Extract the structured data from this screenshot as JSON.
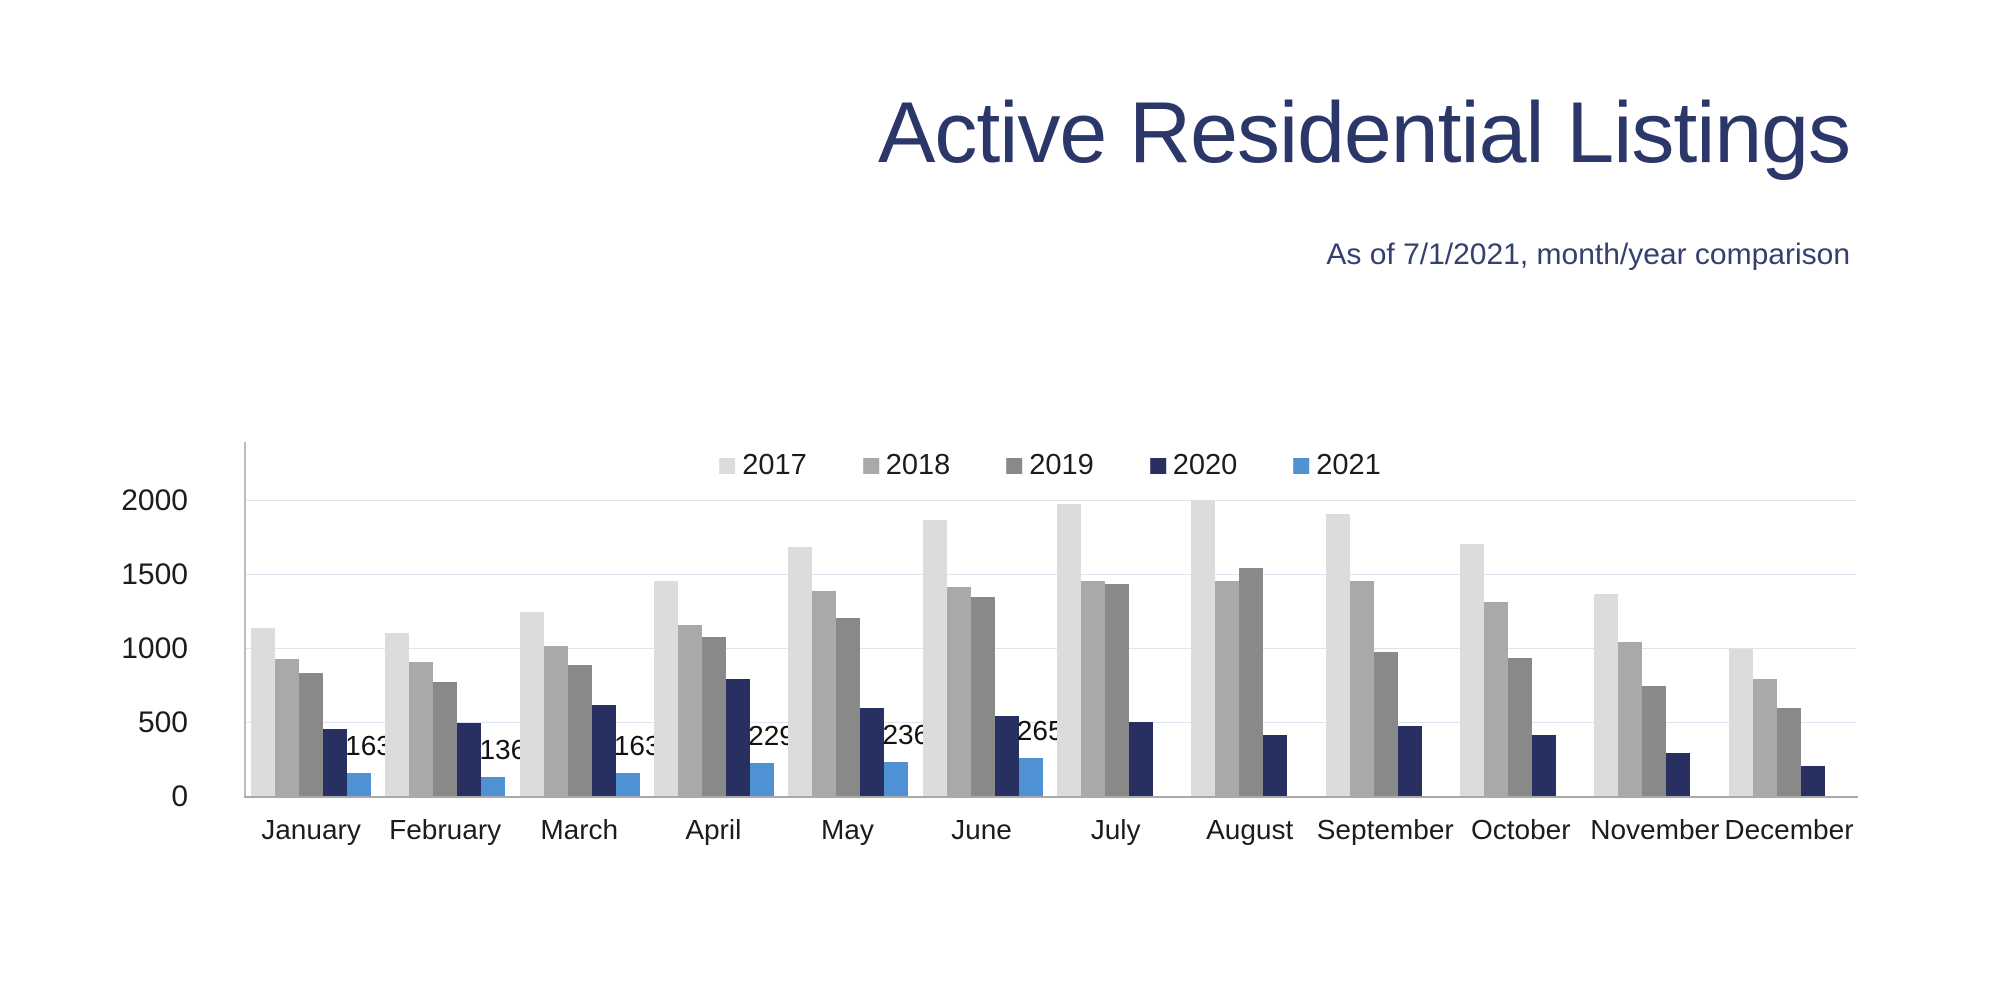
{
  "title": "Active Residential Listings",
  "subtitle": "As of 7/1/2021, month/year comparison",
  "colors": {
    "title_text": "#2b3769",
    "subtitle_text": "#35406e",
    "tick_text": "#1c1c1c",
    "month_text": "#1c1c1c",
    "data_label_text": "#111111",
    "legend_text": "#1c1c1c",
    "gridline": "#dde3f0",
    "y_axis_line": "#b9bcc0",
    "x_axis_line": "#a8a8a8",
    "series_2017": "#dcdcdc",
    "series_2018": "#a9a9a9",
    "series_2019": "#898989",
    "series_2020": "#273060",
    "series_2021": "#4f92d3"
  },
  "chart_data": {
    "type": "bar",
    "title": "Active Residential Listings",
    "subtitle": "As of 7/1/2021, month/year comparison",
    "categories": [
      "January",
      "February",
      "March",
      "April",
      "May",
      "June",
      "July",
      "August",
      "September",
      "October",
      "November",
      "December"
    ],
    "series": [
      {
        "name": "2017",
        "color": "#dcdcdc",
        "values": [
          1140,
          1110,
          1250,
          1460,
          1690,
          1870,
          1980,
          2010,
          1910,
          1710,
          1370,
          1000
        ]
      },
      {
        "name": "2018",
        "color": "#a9a9a9",
        "values": [
          930,
          910,
          1020,
          1160,
          1390,
          1420,
          1460,
          1460,
          1460,
          1320,
          1050,
          800
        ]
      },
      {
        "name": "2019",
        "color": "#898989",
        "values": [
          840,
          780,
          890,
          1080,
          1210,
          1350,
          1440,
          1550,
          980,
          940,
          750,
          600
        ]
      },
      {
        "name": "2020",
        "color": "#273060",
        "values": [
          460,
          500,
          620,
          800,
          600,
          550,
          510,
          420,
          480,
          420,
          300,
          210
        ]
      },
      {
        "name": "2021",
        "color": "#4f92d3",
        "values": [
          163,
          136,
          163,
          229,
          236,
          265,
          null,
          null,
          null,
          null,
          null,
          null
        ],
        "show_data_labels": true
      }
    ],
    "data_labels_shown": [
      "163",
      "136",
      "163",
      "229",
      "236",
      "265"
    ],
    "ylim": [
      0,
      2400
    ],
    "yticks": [
      0,
      500,
      1000,
      1500,
      2000
    ],
    "ytick_labels": [
      "0",
      "500",
      "1000",
      "1500",
      "2000"
    ],
    "grid": true,
    "legend_position": "top-center",
    "legend_entries": [
      "2017",
      "2018",
      "2019",
      "2020",
      "2021"
    ]
  }
}
